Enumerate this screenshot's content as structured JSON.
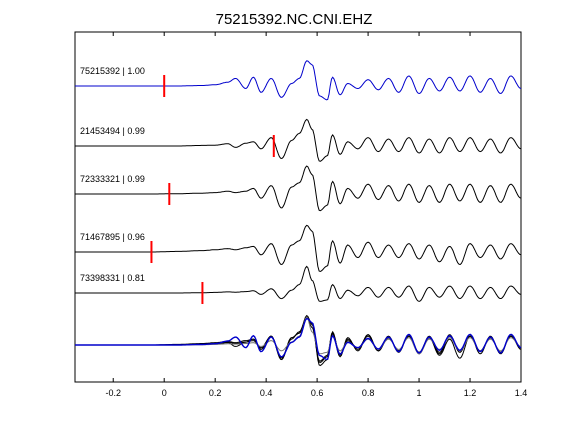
{
  "chart_data": {
    "type": "line",
    "title": "75215392.NC.CNI.EHZ",
    "xlabel": "",
    "ylabel": "",
    "xlim": [
      -0.35,
      1.4
    ],
    "xticks": [
      -0.2,
      0,
      0.2,
      0.4,
      0.6,
      0.8,
      1,
      1.2,
      1.4
    ],
    "xtick_labels": [
      "-0.2",
      "0",
      "0.2",
      "0.4",
      "0.6",
      "0.8",
      "1",
      "1.2",
      "1.4"
    ],
    "grid": false,
    "colors": {
      "reference": "#0000cc",
      "trace": "#000000",
      "overlay_gray": "#777777",
      "pick": "#ff0000",
      "axes": "#000000"
    },
    "traces": [
      {
        "label": "75215392 | 1.00",
        "event_id": "75215392",
        "correlation": 1.0,
        "color": "#0000cc",
        "pick_time": 0.0,
        "amp_scale": 0.9,
        "main_arrival": 0.555,
        "t": [
          -0.35,
          -0.25,
          -0.15,
          -0.05,
          0.05,
          0.15,
          0.2,
          0.25,
          0.28,
          0.32,
          0.35,
          0.38,
          0.42,
          0.46,
          0.5,
          0.53,
          0.56,
          0.58,
          0.61,
          0.64,
          0.66,
          0.69,
          0.72,
          0.76,
          0.8,
          0.84,
          0.88,
          0.92,
          0.96,
          1.0,
          1.04,
          1.08,
          1.12,
          1.16,
          1.2,
          1.24,
          1.28,
          1.32,
          1.36,
          1.4
        ],
        "y": [
          0,
          0,
          0,
          0,
          0,
          0.02,
          0.05,
          0.15,
          0.3,
          -0.1,
          0.35,
          -0.25,
          0.3,
          -0.45,
          0.1,
          0.3,
          1.0,
          0.85,
          -0.4,
          -0.55,
          0.35,
          -0.35,
          0.1,
          -0.1,
          0.25,
          -0.15,
          0.3,
          -0.25,
          0.4,
          -0.3,
          0.3,
          -0.2,
          0.35,
          -0.2,
          0.4,
          -0.25,
          0.3,
          -0.3,
          0.4,
          -0.1
        ]
      },
      {
        "label": "21453494 | 0.99",
        "event_id": "21453494",
        "correlation": 0.99,
        "color": "#000000",
        "pick_time": 0.43,
        "amp_scale": 1.0,
        "main_arrival": 0.56,
        "t": [
          -0.35,
          -0.25,
          -0.15,
          -0.05,
          0.05,
          0.15,
          0.2,
          0.25,
          0.28,
          0.32,
          0.35,
          0.38,
          0.42,
          0.46,
          0.5,
          0.53,
          0.56,
          0.58,
          0.61,
          0.64,
          0.66,
          0.69,
          0.72,
          0.76,
          0.8,
          0.84,
          0.88,
          0.92,
          0.96,
          1.0,
          1.04,
          1.08,
          1.12,
          1.16,
          1.2,
          1.24,
          1.28,
          1.32,
          1.36,
          1.4
        ],
        "y": [
          0,
          0,
          0,
          0,
          0,
          0.02,
          0.03,
          0.08,
          -0.05,
          0.1,
          0.15,
          -0.1,
          0.3,
          -0.45,
          0.2,
          0.45,
          0.95,
          0.6,
          -0.55,
          -0.35,
          0.4,
          -0.3,
          0.15,
          -0.1,
          0.3,
          -0.2,
          0.25,
          -0.2,
          0.3,
          -0.25,
          0.25,
          -0.25,
          0.3,
          -0.2,
          0.3,
          -0.2,
          0.25,
          -0.25,
          0.3,
          -0.1
        ]
      },
      {
        "label": "72333321 | 0.99",
        "event_id": "72333321",
        "correlation": 0.99,
        "color": "#000000",
        "pick_time": 0.02,
        "amp_scale": 1.0,
        "main_arrival": 0.56,
        "t": [
          -0.35,
          -0.25,
          -0.15,
          -0.05,
          0.05,
          0.15,
          0.2,
          0.25,
          0.28,
          0.32,
          0.35,
          0.38,
          0.42,
          0.46,
          0.5,
          0.53,
          0.56,
          0.58,
          0.61,
          0.64,
          0.66,
          0.69,
          0.72,
          0.76,
          0.8,
          0.84,
          0.88,
          0.92,
          0.96,
          1.0,
          1.04,
          1.08,
          1.12,
          1.16,
          1.2,
          1.24,
          1.28,
          1.32,
          1.36,
          1.4
        ],
        "y": [
          0,
          0,
          0,
          0,
          0.01,
          0.03,
          0.05,
          0.1,
          0.05,
          0.1,
          0.2,
          -0.15,
          0.3,
          -0.5,
          0.25,
          0.4,
          1.0,
          0.7,
          -0.6,
          -0.4,
          0.45,
          -0.35,
          0.2,
          -0.15,
          0.35,
          -0.2,
          0.3,
          -0.25,
          0.35,
          -0.3,
          0.3,
          -0.3,
          0.35,
          -0.25,
          0.35,
          -0.3,
          0.3,
          -0.3,
          0.35,
          -0.15
        ]
      },
      {
        "label": "71467895 | 0.96",
        "event_id": "71467895",
        "correlation": 0.96,
        "color": "#000000",
        "pick_time": -0.05,
        "amp_scale": 1.0,
        "main_arrival": 0.565,
        "t": [
          -0.35,
          -0.25,
          -0.15,
          -0.05,
          0.05,
          0.15,
          0.2,
          0.25,
          0.28,
          0.32,
          0.35,
          0.38,
          0.42,
          0.46,
          0.5,
          0.53,
          0.56,
          0.58,
          0.61,
          0.64,
          0.66,
          0.69,
          0.72,
          0.76,
          0.8,
          0.84,
          0.88,
          0.92,
          0.96,
          1.0,
          1.04,
          1.08,
          1.12,
          1.16,
          1.2,
          1.24,
          1.28,
          1.32,
          1.36,
          1.4
        ],
        "y": [
          0,
          0,
          0,
          0,
          0.02,
          0.05,
          0.08,
          0.12,
          0.08,
          0.15,
          0.2,
          -0.1,
          0.3,
          -0.45,
          0.25,
          0.4,
          0.95,
          0.75,
          -0.7,
          -0.5,
          0.4,
          -0.4,
          0.25,
          -0.2,
          0.35,
          -0.2,
          0.25,
          -0.2,
          0.3,
          -0.25,
          0.25,
          -0.35,
          0.2,
          -0.45,
          0.3,
          -0.2,
          0.25,
          -0.25,
          0.3,
          -0.1
        ]
      },
      {
        "label": "73398331 | 0.81",
        "event_id": "73398331",
        "correlation": 0.81,
        "color": "#000000",
        "pick_time": 0.15,
        "amp_scale": 1.0,
        "main_arrival": 0.555,
        "t": [
          -0.35,
          -0.25,
          -0.15,
          -0.05,
          0.05,
          0.15,
          0.2,
          0.25,
          0.28,
          0.32,
          0.35,
          0.38,
          0.42,
          0.46,
          0.5,
          0.53,
          0.56,
          0.58,
          0.61,
          0.64,
          0.66,
          0.69,
          0.72,
          0.76,
          0.8,
          0.84,
          0.88,
          0.92,
          0.96,
          1.0,
          1.04,
          1.08,
          1.12,
          1.16,
          1.2,
          1.24,
          1.28,
          1.32,
          1.36,
          1.4
        ],
        "y": [
          0,
          0,
          0,
          0,
          0,
          0.01,
          0.02,
          0.04,
          0.03,
          0.05,
          0.08,
          -0.05,
          0.15,
          -0.2,
          0.1,
          0.3,
          0.95,
          0.45,
          -0.3,
          -0.25,
          0.3,
          -0.2,
          0.1,
          -0.1,
          0.2,
          -0.15,
          0.2,
          -0.15,
          0.25,
          -0.3,
          0.2,
          -0.15,
          0.25,
          -0.2,
          0.25,
          -0.2,
          0.2,
          -0.2,
          0.25,
          -0.05
        ]
      }
    ],
    "overlay": {
      "description_visible": false
    }
  }
}
